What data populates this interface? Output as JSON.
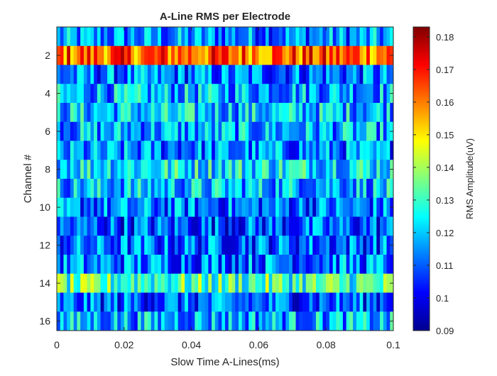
{
  "chart_data": {
    "type": "heatmap",
    "title": "A-Line RMS per Electrode",
    "xlabel": "Slow Time A-Lines(ms)",
    "ylabel": "Channel #",
    "colorbar_label": "RMS Amplitude(uV)",
    "colormap": "jet",
    "xlim": [
      0,
      0.1
    ],
    "x_ticks": [
      0,
      0.02,
      0.04,
      0.06,
      0.08,
      0.1
    ],
    "x_tick_labels": [
      "0",
      "0.02",
      "0.04",
      "0.06",
      "0.08",
      "0.1"
    ],
    "ylim": [
      1,
      16
    ],
    "y_direction": "reverse",
    "y_ticks": [
      2,
      4,
      6,
      8,
      10,
      12,
      14,
      16
    ],
    "y_tick_labels": [
      "2",
      "4",
      "6",
      "8",
      "10",
      "12",
      "14",
      "16"
    ],
    "clim": [
      0.09,
      0.183
    ],
    "colorbar_ticks": [
      0.09,
      0.1,
      0.11,
      0.12,
      0.13,
      0.14,
      0.15,
      0.16,
      0.17,
      0.18
    ],
    "colorbar_tick_labels": [
      "0.09",
      "0.1",
      "0.11",
      "0.12",
      "0.13",
      "0.14",
      "0.15",
      "0.16",
      "0.17",
      "0.18"
    ],
    "channels": [
      1,
      2,
      3,
      4,
      5,
      6,
      7,
      8,
      9,
      10,
      11,
      12,
      13,
      14,
      15,
      16
    ],
    "channel_mean_rms": [
      0.114,
      0.163,
      0.112,
      0.118,
      0.12,
      0.117,
      0.113,
      0.125,
      0.119,
      0.112,
      0.109,
      0.111,
      0.113,
      0.131,
      0.11,
      0.118
    ],
    "n_alines": 100
  }
}
